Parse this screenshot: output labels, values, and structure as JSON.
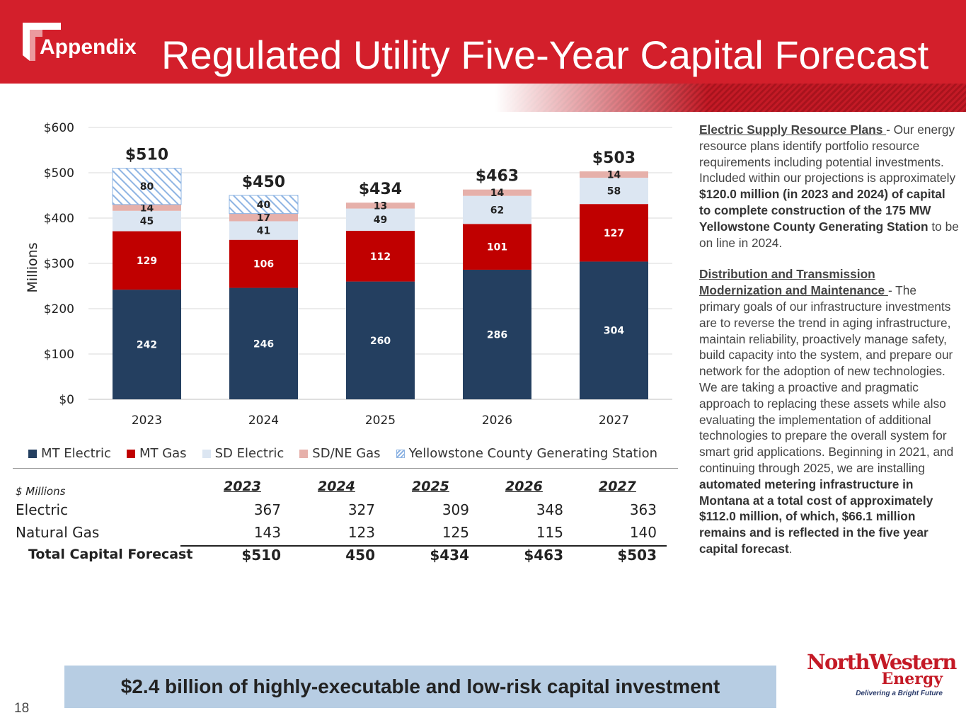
{
  "header": {
    "section_label": "Appendix",
    "title": "Regulated Utility Five-Year Capital Forecast"
  },
  "colors": {
    "banner": "#d31f2b",
    "mt_electric": "#243f60",
    "mt_gas": "#c00000",
    "sd_electric": "#dce6f2",
    "sd_ne_gas": "#e6b0aa",
    "yellowstone": "#8eb4e3",
    "bottom_bar": "#b7cde3"
  },
  "chart_data": {
    "type": "bar",
    "stacked": true,
    "ylabel": "Millions",
    "ylim": [
      0,
      600
    ],
    "yticks": [
      "$0",
      "$100",
      "$200",
      "$300",
      "$400",
      "$500",
      "$600"
    ],
    "yticks_values": [
      0,
      100,
      200,
      300,
      400,
      500,
      600
    ],
    "grid": true,
    "legend": "bottom",
    "categories": [
      "2023",
      "2024",
      "2025",
      "2026",
      "2027"
    ],
    "totals": [
      "$510",
      "$450",
      "$434",
      "$463",
      "$503"
    ],
    "series": [
      {
        "name": "MT Electric",
        "values": [
          242,
          246,
          260,
          286,
          304
        ]
      },
      {
        "name": "MT Gas",
        "values": [
          129,
          106,
          112,
          101,
          127
        ]
      },
      {
        "name": "SD Electric",
        "values": [
          45,
          41,
          49,
          62,
          58
        ]
      },
      {
        "name": "SD/NE Gas",
        "values": [
          14,
          17,
          13,
          14,
          14
        ]
      },
      {
        "name": "Yellowstone County Generating Station",
        "values": [
          80,
          40,
          0,
          0,
          0
        ]
      }
    ]
  },
  "table": {
    "units": "$ Millions",
    "years": [
      "2023",
      "2024",
      "2025",
      "2026",
      "2027"
    ],
    "rows": [
      {
        "label": "Electric",
        "values": [
          "367",
          "327",
          "309",
          "348",
          "363"
        ]
      },
      {
        "label": "Natural Gas",
        "values": [
          "143",
          "123",
          "125",
          "115",
          "140"
        ]
      }
    ],
    "total": {
      "label": "Total Capital Forecast",
      "values": [
        "$510",
        "450",
        "$434",
        "$463",
        "$503"
      ]
    }
  },
  "side": {
    "p1_heading": "Electric Supply Resource Plans ",
    "p1_a": "- Our energy resource plans identify portfolio resource requirements including potential investments. Included within our projections is approximately ",
    "p1_bold": "$120.0 million (in 2023 and 2024) of capital to complete construction of the 175 MW Yellowstone County Generating Station",
    "p1_b": " to be on line in 2024.",
    "p2_heading": "Distribution and Transmission Modernization and Maintenance ",
    "p2_a": "- The primary goals of our infrastructure investments are to reverse the trend in aging infrastructure, maintain reliability, proactively manage safety, build capacity into the system, and prepare our network for the adoption of new technologies. We are taking a proactive and pragmatic approach to replacing these assets while also evaluating the implementation of additional technologies to prepare the overall system for smart grid applications. Beginning in 2021, and continuing through 2025, we are installing ",
    "p2_bold": "automated metering infrastructure in Montana at a total cost of approximately $112.0 million, of which, $66.1 million remains and is reflected in the five year capital forecast",
    "p2_b": "."
  },
  "footer": {
    "tagline": "$2.4 billion of highly-executable and low-risk capital investment",
    "page_number": "18"
  },
  "logo": {
    "name": "NorthWestern",
    "sub": "Energy",
    "tag": "Delivering a Bright Future"
  }
}
